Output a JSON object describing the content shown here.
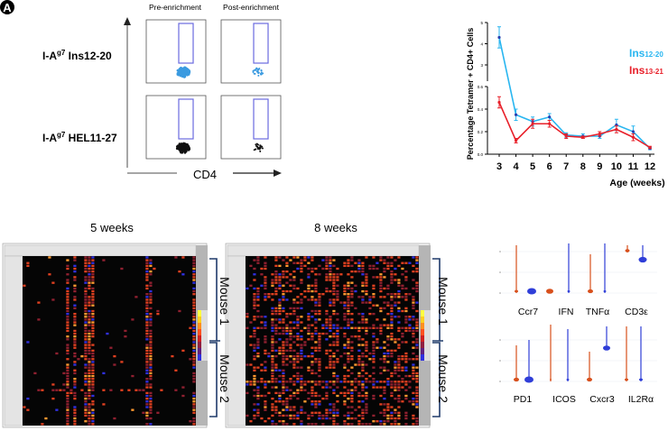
{
  "panel_label": "A",
  "flow": {
    "col_titles": [
      "Pre-enrichment",
      "Post-enrichment"
    ],
    "row_labels": [
      {
        "prefix": "I-A",
        "sup": "g7",
        "suffix": " Ins12-20"
      },
      {
        "prefix": "I-A",
        "sup": "g7",
        "suffix": " HEL11-27"
      }
    ],
    "x_axis_label": "CD4",
    "colors": {
      "ins": "#3a9ae0",
      "hel": "#111111",
      "gate": "#6a6ae0"
    }
  },
  "chart_data": {
    "type": "line",
    "xlabel": "Age (weeks)",
    "ylabel": "Percentage Tetramer + CD4+ Cells",
    "x": [
      3,
      4,
      5,
      6,
      7,
      8,
      9,
      10,
      11,
      12
    ],
    "x_tick_labels": [
      "3",
      "4",
      "5",
      "6",
      "7",
      "8",
      "9",
      "10",
      "11",
      "12"
    ],
    "y_axis_broken": true,
    "y_lower_range": [
      0,
      0.6
    ],
    "y_lower_ticks": [
      "0.0",
      "0.2",
      "0.4",
      "0.6"
    ],
    "y_upper_range": [
      3,
      5
    ],
    "y_upper_ticks": [
      "3",
      "4",
      "5"
    ],
    "series": [
      {
        "name": "Ins12-20",
        "name_main": "Ins",
        "name_sub": "12-20",
        "color": "#29b6f0",
        "values": [
          4.3,
          0.35,
          0.29,
          0.33,
          0.17,
          0.16,
          0.16,
          0.26,
          0.2,
          0.05
        ],
        "errors": [
          0.5,
          0.05,
          0.04,
          0.03,
          0.02,
          0.02,
          0.02,
          0.05,
          0.05,
          0.01
        ]
      },
      {
        "name": "Ins13-21",
        "name_main": "Ins",
        "name_sub": "13-21",
        "color": "#e8202a",
        "values": [
          0.46,
          0.12,
          0.27,
          0.27,
          0.16,
          0.15,
          0.18,
          0.22,
          0.15,
          0.06
        ],
        "errors": [
          0.05,
          0.02,
          0.04,
          0.03,
          0.02,
          0.01,
          0.02,
          0.03,
          0.03,
          0.01
        ]
      }
    ],
    "legend_position": "right"
  },
  "heatmaps": [
    {
      "title": "5 weeks",
      "brackets": [
        "Mouse 1",
        "Mouse 2"
      ]
    },
    {
      "title": "8 weeks",
      "brackets": [
        "Mouse 1",
        "Mouse 2"
      ]
    }
  ],
  "violins": {
    "rows": [
      [
        "Ccr7",
        "IFN",
        "TNFα",
        "CD3ε"
      ],
      [
        "PD1",
        "ICOS",
        "Cxcr3",
        "IL2Rα"
      ]
    ],
    "colors": {
      "a": "#d8501c",
      "b": "#2f3ed8"
    }
  }
}
